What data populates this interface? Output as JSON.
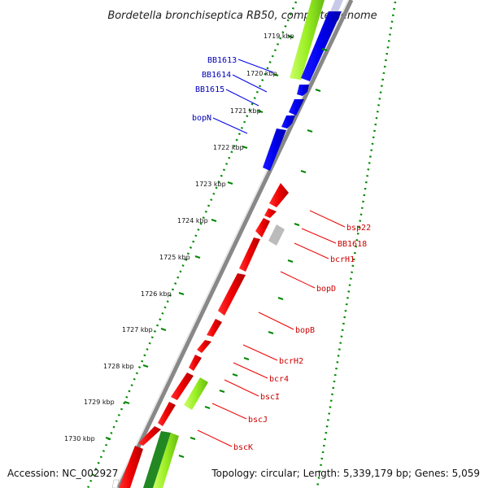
{
  "title": "Bordetella bronchiseptica RB50, complete genome",
  "footer": {
    "accession": "Accession: NC_002927",
    "topology": "Topology: circular; Length: 5,339,179 bp; Genes: 5,059"
  },
  "ticks": [
    "1719 kbp",
    "1720 kbp",
    "1721 kbp",
    "1722 kbp",
    "1723 kbp",
    "1724 kbp",
    "1725 kbp",
    "1726 kbp",
    "1727 kbp",
    "1728 kbp",
    "1729 kbp",
    "1730 kbp"
  ],
  "left_genes": [
    "BB1613",
    "BB1614",
    "BB1615",
    "bopN"
  ],
  "right_genes": [
    "bsp22",
    "BB1618",
    "bcrH1",
    "bopD",
    "bopB",
    "bcrH2",
    "bcr4",
    "bscI",
    "bscJ",
    "bscK"
  ],
  "colors": {
    "forward_cds": "#0000ee",
    "reverse_cds": "#ee0000",
    "other_feature": "#99ee22",
    "dark_green_feature": "#228822",
    "hypothetical": "#bbbbbb",
    "backbone": "#888888",
    "gc_dots": "#008800"
  }
}
